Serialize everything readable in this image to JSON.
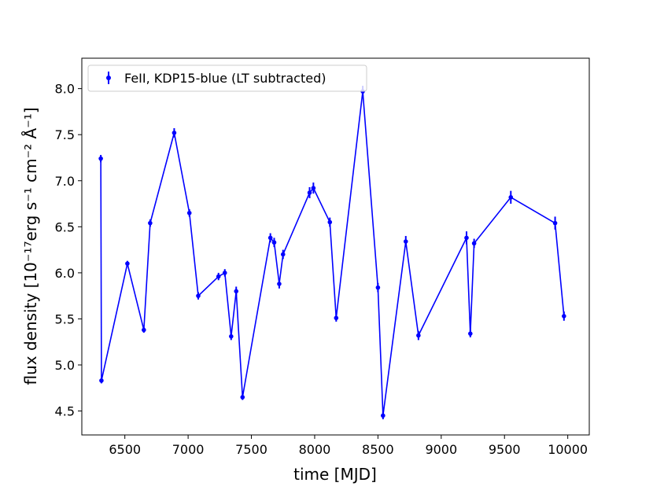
{
  "chart_data": {
    "type": "line",
    "xlabel": "time [MJD]",
    "ylabel": "flux density [10⁻¹⁷erg s⁻¹ cm⁻² Å⁻¹]",
    "xlim": [
      6160,
      10170
    ],
    "ylim": [
      4.24,
      8.33
    ],
    "xticks": [
      6500,
      7000,
      7500,
      8000,
      8500,
      9000,
      9500,
      10000
    ],
    "yticks": [
      4.5,
      5.0,
      5.5,
      6.0,
      6.5,
      7.0,
      7.5,
      8.0
    ],
    "xtick_labels": [
      "6500",
      "7000",
      "7500",
      "8000",
      "8500",
      "9000",
      "9500",
      "10000"
    ],
    "ytick_labels": [
      "4.5",
      "5.0",
      "5.5",
      "6.0",
      "6.5",
      "7.0",
      "7.5",
      "8.0"
    ],
    "legend_position": "top-left",
    "grid": false,
    "color": "#0000ff",
    "series": [
      {
        "name": "FeII, KDP15-blue (LT subtracted)",
        "x": [
          6310,
          6315,
          6520,
          6650,
          6700,
          6890,
          7010,
          7080,
          7240,
          7290,
          7340,
          7380,
          7430,
          7650,
          7680,
          7720,
          7750,
          7960,
          7990,
          8120,
          8170,
          8380,
          8500,
          8540,
          8720,
          8820,
          9200,
          9230,
          9260,
          9550,
          9900,
          9970
        ],
        "y": [
          7.24,
          4.83,
          6.1,
          5.38,
          6.54,
          7.52,
          6.65,
          5.75,
          5.96,
          6.0,
          5.31,
          5.8,
          4.65,
          6.38,
          6.33,
          5.88,
          6.2,
          6.87,
          6.92,
          6.55,
          5.51,
          7.97,
          5.84,
          4.45,
          6.34,
          5.32,
          6.38,
          5.34,
          6.32,
          6.82,
          6.54,
          5.53
        ],
        "yerr": [
          0.04,
          0.03,
          0.03,
          0.03,
          0.04,
          0.05,
          0.04,
          0.04,
          0.04,
          0.04,
          0.04,
          0.05,
          0.03,
          0.05,
          0.05,
          0.05,
          0.05,
          0.06,
          0.06,
          0.05,
          0.04,
          0.06,
          0.05,
          0.04,
          0.06,
          0.05,
          0.07,
          0.04,
          0.05,
          0.07,
          0.07,
          0.05
        ]
      }
    ]
  }
}
